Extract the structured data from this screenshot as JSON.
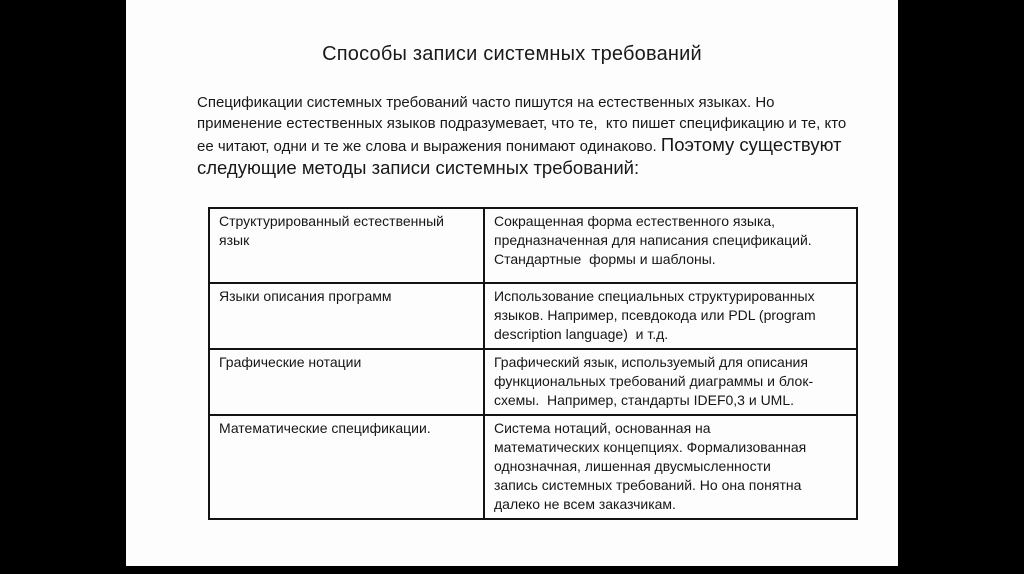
{
  "window": {
    "background_color": "#000000"
  },
  "slide": {
    "background_color": "#fdfdfd",
    "title": "Способы записи системных требований",
    "paragraph_lines": [
      {
        "segments": [
          {
            "style": "small",
            "text": "Спецификации системных требований часто пишутся на естественных языках. Но"
          }
        ]
      },
      {
        "segments": [
          {
            "style": "small",
            "text": "применение естественных языков подразумевает, что те,  кто пишет спецификацию и те, кто"
          }
        ]
      },
      {
        "segments": [
          {
            "style": "small",
            "text": "ее читают, одни и те же слова и выражения понимают одинаково. "
          },
          {
            "style": "large",
            "text": "Поэтому существуют"
          }
        ]
      },
      {
        "segments": [
          {
            "style": "large",
            "text": "следующие методы записи системных требований:"
          }
        ]
      }
    ],
    "table": {
      "rows": [
        {
          "term": "Структурированный естественный язык",
          "term_lines": [
            "Структурированный естественный",
            "язык"
          ],
          "description": "Сокращенная форма естественного языка, предназначенная для написания спецификаций. Стандартные  формы и шаблоны.",
          "description_lines": [
            "Сокращенная форма естественного языка,",
            "предназначенная для написания спецификаций.",
            "Стандартные  формы и шаблоны."
          ]
        },
        {
          "term": "Языки описания программ",
          "term_lines": [
            "Языки описания программ"
          ],
          "description": "Использование специальных структурированных языков. Например, псевдокода или PDL (program description language)  и т.д.",
          "description_lines": [
            "Использование специальных структурированных",
            "языков. Например, псевдокода или PDL (program",
            "description language)  и т.д."
          ]
        },
        {
          "term": "Графические нотации",
          "term_lines": [
            "Графические нотации"
          ],
          "description": "Графический язык, используемый для описания функциональных требований диаграммы и блок-схемы.  Например, стандарты IDEF0,3 и UML.",
          "description_lines": [
            "Графический язык, используемый для описания",
            "функциональных требований диаграммы и блок-",
            "схемы.  Например, стандарты IDEF0,3 и UML."
          ]
        },
        {
          "term": "Математические спецификации.",
          "term_lines": [
            "Математические спецификации."
          ],
          "description": "Система нотаций, основанная на математических концепциях. Формализованная однозначная, лишенная двусмысленности запись системных требований. Но она понятна далеко не всем заказчикам.",
          "description_lines": [
            "Система нотаций, основанная на",
            "математических концепциях. Формализованная",
            "однозначная, лишенная двусмысленности",
            "запись системных требований. Но она понятна",
            "далеко не всем заказчикам."
          ]
        }
      ]
    }
  }
}
